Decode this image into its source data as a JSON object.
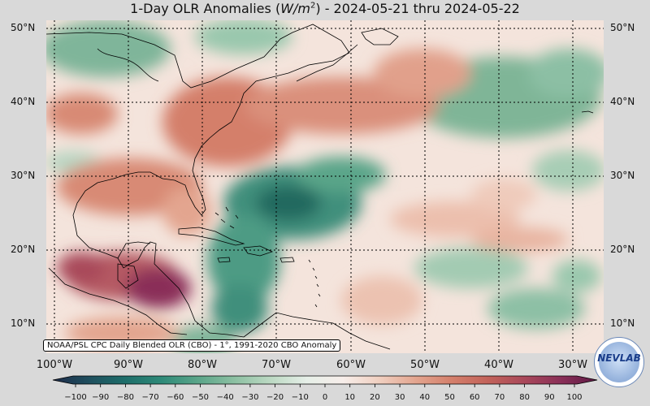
{
  "title": {
    "prefix": "1-Day OLR Anomalies (",
    "unit_main": "W/m",
    "unit_sup": "2",
    "suffix": ") - 2024-05-21 thru 2024-05-22"
  },
  "credit": "NOAA/PSL CPC Daily Blended OLR (CBO) - 1°, 1991-2020 CBO Anomaly",
  "lat_labels": [
    "50°N",
    "40°N",
    "30°N",
    "20°N",
    "10°N"
  ],
  "lon_labels": [
    "100°W",
    "90°W",
    "80°W",
    "70°W",
    "60°W",
    "50°W",
    "40°W",
    "30°W"
  ],
  "colorbar": {
    "ticks": [
      "−100",
      "−90",
      "−80",
      "−70",
      "−60",
      "−50",
      "−40",
      "−30",
      "−20",
      "−10",
      "0",
      "10",
      "20",
      "30",
      "40",
      "50",
      "60",
      "70",
      "80",
      "90",
      "100"
    ],
    "stops": [
      "#1d2b4a",
      "#1f4f5e",
      "#1e6e6a",
      "#2e8a78",
      "#5aa589",
      "#8cc0a2",
      "#bcd9c3",
      "#e6efe8",
      "#f7eeea",
      "#f0cfc0",
      "#e3a58f",
      "#d47f6b",
      "#c2625a",
      "#a9485a",
      "#8a2f58",
      "#5e1a44"
    ]
  },
  "logo_text": "NEVLAB",
  "colors": {
    "background": "#d9d9d9",
    "negative": "#2e8a78",
    "positive": "#c2625a",
    "neutral": "#f7eeea"
  }
}
